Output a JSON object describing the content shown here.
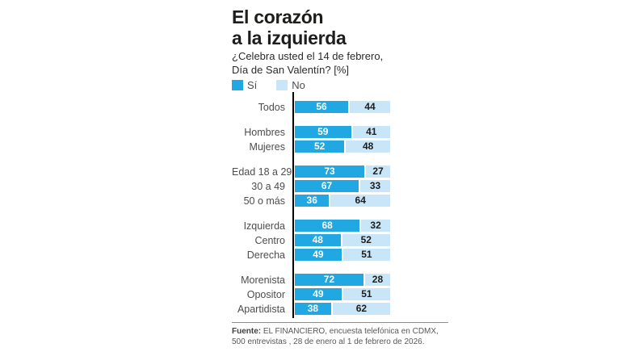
{
  "header": {
    "title_line1": "El corazón",
    "title_line2": "a la izquierda",
    "subtitle_line1": "¿Celebra usted el 14 de febrero,",
    "subtitle_line2": "Día de San Valentín? [%]"
  },
  "legend": {
    "si_label": "Sí",
    "no_label": "No"
  },
  "colors": {
    "si": "#21a7e1",
    "no": "#c8e6f8",
    "value_on_si": "#ffffff",
    "value_on_no": "#1d1d1b",
    "axis": "#000000"
  },
  "chart_data": {
    "type": "bar",
    "orientation": "horizontal",
    "stacked": true,
    "unit": "%",
    "xlim": [
      0,
      100
    ],
    "series_names": [
      "Sí",
      "No"
    ],
    "title": "El corazón a la izquierda",
    "subtitle": "¿Celebra usted el 14 de febrero, Día de San Valentín? [%]",
    "groups": [
      {
        "rows": [
          {
            "label": "Todos",
            "si": 56,
            "no": 44
          }
        ]
      },
      {
        "rows": [
          {
            "label": "Hombres",
            "si": 59,
            "no": 41
          },
          {
            "label": "Mujeres",
            "si": 52,
            "no": 48
          }
        ]
      },
      {
        "rows": [
          {
            "label": "Edad 18 a 29",
            "si": 73,
            "no": 27
          },
          {
            "label": "30 a 49",
            "si": 67,
            "no": 33
          },
          {
            "label": "50 o más",
            "si": 36,
            "no": 64
          }
        ]
      },
      {
        "rows": [
          {
            "label": "Izquierda",
            "si": 68,
            "no": 32
          },
          {
            "label": "Centro",
            "si": 48,
            "no": 52
          },
          {
            "label": "Derecha",
            "si": 49,
            "no": 51
          }
        ]
      },
      {
        "rows": [
          {
            "label": "Morenista",
            "si": 72,
            "no": 28
          },
          {
            "label": "Opositor",
            "si": 49,
            "no": 51
          },
          {
            "label": "Apartidista",
            "si": 38,
            "no": 62
          }
        ]
      }
    ]
  },
  "footer": {
    "source_bold": "Fuente:",
    "source_line1": " EL FINANCIERO, encuesta telefónica en CDMX,",
    "source_line2": "500 entrevistas , 28 de enero al 1 de febrero de 2026."
  }
}
